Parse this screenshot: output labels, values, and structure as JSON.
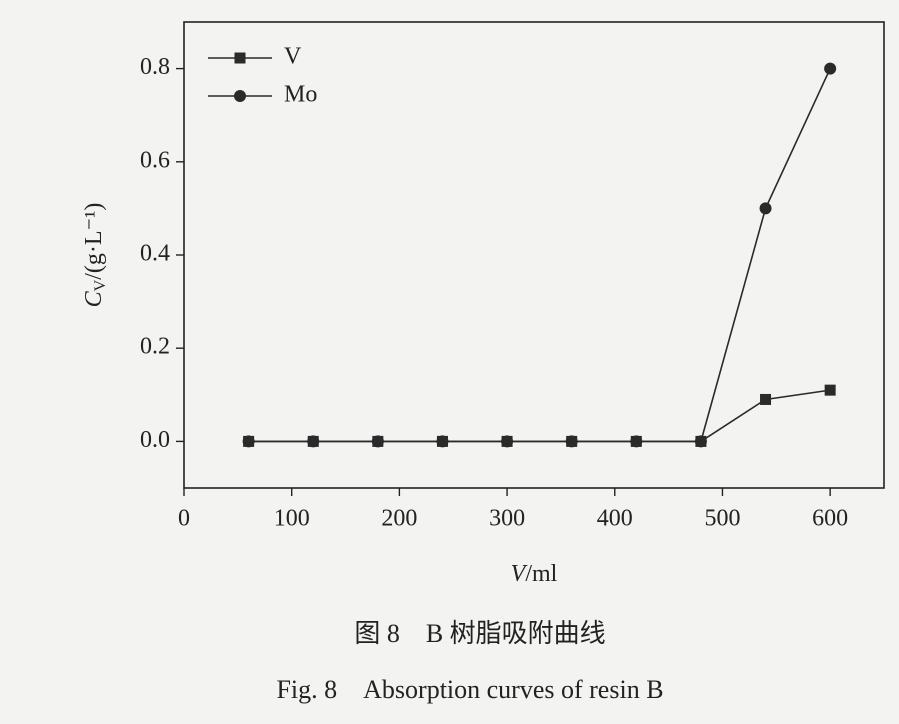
{
  "chart_data": {
    "type": "line",
    "xlabel": {
      "symbol": "V",
      "unit": "/ml"
    },
    "ylabel": {
      "symbol": "C",
      "subscript": "V",
      "unit": "/(g·L⁻¹)"
    },
    "x": [
      60,
      120,
      180,
      240,
      300,
      360,
      420,
      480,
      540,
      600
    ],
    "series": [
      {
        "name": "V",
        "color": "#2a2a2a",
        "marker": "square",
        "values": [
          0,
          0,
          0,
          0,
          0,
          0,
          0,
          0,
          0.09,
          0.11
        ]
      },
      {
        "name": "Mo",
        "color": "#2a2a2a",
        "marker": "circle",
        "values": [
          0,
          0,
          0,
          0,
          0,
          0,
          0,
          0,
          0.5,
          0.8
        ]
      }
    ],
    "xlim": [
      0,
      650
    ],
    "ylim": [
      -0.1,
      0.9
    ],
    "xticks": [
      0,
      100,
      200,
      300,
      400,
      500,
      600
    ],
    "yticks": [
      {
        "value": 0,
        "label": "0.0"
      },
      0.2,
      0.4,
      0.6,
      0.8
    ],
    "legend": "upper left",
    "grid": false
  },
  "caption": {
    "chinese": "图 8　B 树脂吸附曲线",
    "english": "Fig. 8　Absorption curves of resin B"
  }
}
